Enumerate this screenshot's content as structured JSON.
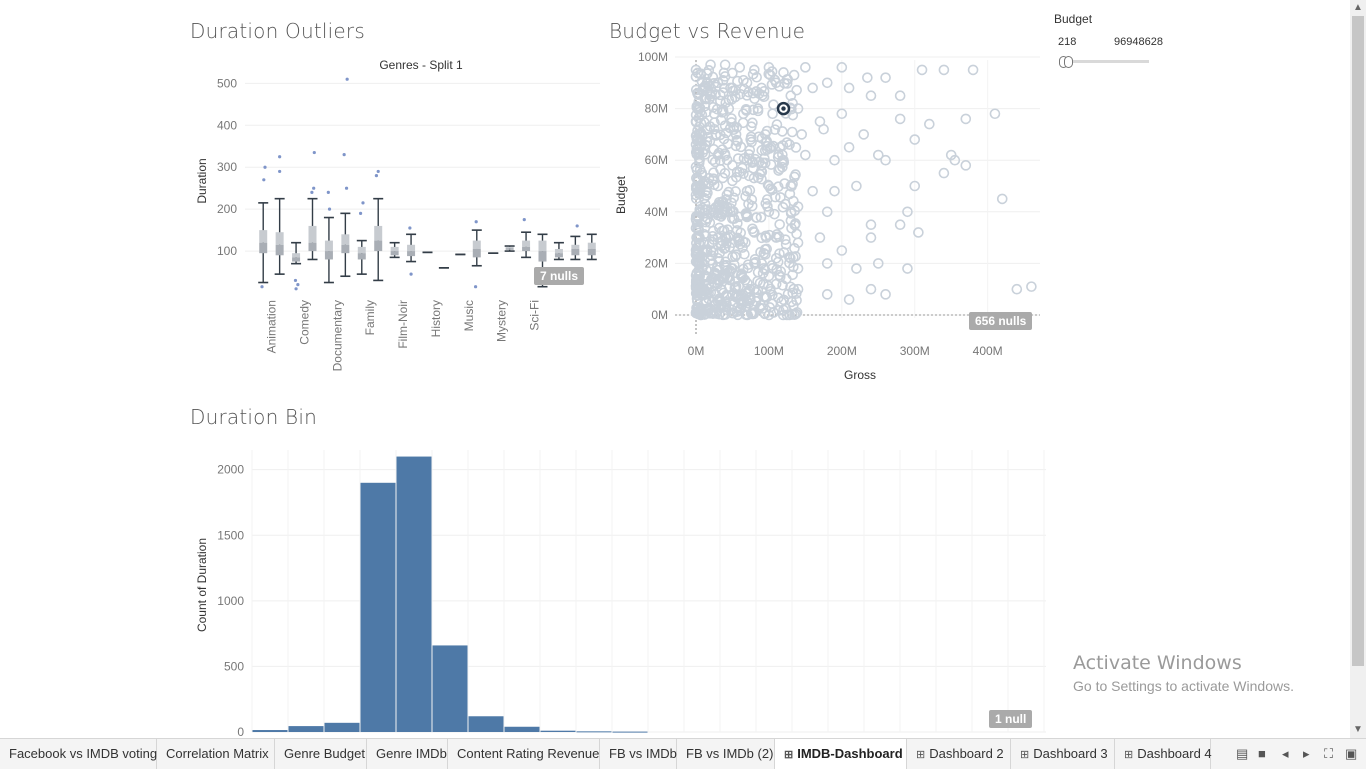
{
  "dashboard": {
    "panels": {
      "duration_outliers": {
        "title": "Duration Outliers",
        "nulls_badge": "7 nulls"
      },
      "budget_vs_revenue": {
        "title": "Budget vs Revenue",
        "nulls_badge": "656 nulls"
      },
      "duration_bin": {
        "title": "Duration Bin",
        "nulls_badge": "1 null"
      }
    },
    "filter": {
      "label": "Budget",
      "min": "218",
      "max": "96948628"
    }
  },
  "chart_data": [
    {
      "type": "box",
      "title": "Duration Outliers",
      "subtitle": "Genres - Split 1",
      "ylabel": "Duration",
      "ylim": [
        0,
        520
      ],
      "yticks": [
        100,
        200,
        300,
        400,
        500
      ],
      "category_labels": [
        "Animation",
        "Comedy",
        "Documentary",
        "Family",
        "Film-Noir",
        "History",
        "Music",
        "Mystery",
        "Sci-Fi"
      ],
      "boxes": [
        {
          "min": 25,
          "q1": 95,
          "median": 120,
          "q3": 150,
          "max": 215,
          "outliers": [
            270,
            300,
            15
          ]
        },
        {
          "min": 45,
          "q1": 90,
          "median": 115,
          "q3": 145,
          "max": 225,
          "outliers": [
            290,
            325
          ]
        },
        {
          "min": 70,
          "q1": 75,
          "median": 85,
          "q3": 95,
          "max": 120,
          "outliers": [
            10,
            20,
            30
          ]
        },
        {
          "min": 80,
          "q1": 100,
          "median": 120,
          "q3": 160,
          "max": 225,
          "outliers": [
            240,
            250,
            335
          ]
        },
        {
          "min": 25,
          "q1": 80,
          "median": 100,
          "q3": 125,
          "max": 180,
          "outliers": [
            240,
            200
          ]
        },
        {
          "min": 40,
          "q1": 95,
          "median": 115,
          "q3": 140,
          "max": 190,
          "outliers": [
            250,
            330,
            510
          ]
        },
        {
          "min": 45,
          "q1": 80,
          "median": 95,
          "q3": 110,
          "max": 125,
          "outliers": [
            190,
            215
          ]
        },
        {
          "min": 30,
          "q1": 100,
          "median": 125,
          "q3": 160,
          "max": 225,
          "outliers": [
            280,
            290
          ]
        },
        {
          "min": 85,
          "q1": 90,
          "median": 100,
          "q3": 110,
          "max": 120,
          "outliers": []
        },
        {
          "min": 75,
          "q1": 88,
          "median": 100,
          "q3": 115,
          "max": 140,
          "outliers": [
            45,
            155
          ]
        },
        {
          "min": 97,
          "q1": 97,
          "median": 97,
          "q3": 97,
          "max": 97,
          "outliers": []
        },
        {
          "min": 60,
          "q1": 60,
          "median": 60,
          "q3": 60,
          "max": 60,
          "outliers": []
        },
        {
          "min": 92,
          "q1": 92,
          "median": 92,
          "q3": 92,
          "max": 92,
          "outliers": []
        },
        {
          "min": 65,
          "q1": 85,
          "median": 105,
          "q3": 125,
          "max": 150,
          "outliers": [
            15,
            170
          ]
        },
        {
          "min": 95,
          "q1": 95,
          "median": 95,
          "q3": 95,
          "max": 95,
          "outliers": []
        },
        {
          "min": 100,
          "q1": 103,
          "median": 107,
          "q3": 110,
          "max": 112,
          "outliers": []
        },
        {
          "min": 85,
          "q1": 100,
          "median": 110,
          "q3": 125,
          "max": 145,
          "outliers": [
            175
          ]
        },
        {
          "min": 15,
          "q1": 75,
          "median": 100,
          "q3": 125,
          "max": 140,
          "outliers": []
        },
        {
          "min": 80,
          "q1": 85,
          "median": 95,
          "q3": 105,
          "max": 120,
          "outliers": []
        },
        {
          "min": 80,
          "q1": 90,
          "median": 105,
          "q3": 115,
          "max": 135,
          "outliers": [
            160
          ]
        },
        {
          "min": 80,
          "q1": 90,
          "median": 105,
          "q3": 120,
          "max": 140,
          "outliers": []
        }
      ]
    },
    {
      "type": "scatter",
      "title": "Budget vs Revenue",
      "xlabel": "Gross",
      "ylabel": "Budget",
      "xticks": [
        "0M",
        "100M",
        "200M",
        "300M",
        "400M"
      ],
      "yticks": [
        "0M",
        "20M",
        "40M",
        "60M",
        "80M",
        "100M"
      ],
      "xlim": [
        0,
        480
      ],
      "ylim": [
        0,
        100
      ],
      "units": "millions",
      "highlighted_point": {
        "x": 120,
        "y": 80
      },
      "points": [
        [
          0,
          95
        ],
        [
          20,
          97
        ],
        [
          40,
          97
        ],
        [
          60,
          96
        ],
        [
          80,
          95
        ],
        [
          100,
          96
        ],
        [
          120,
          94
        ],
        [
          150,
          96
        ],
        [
          200,
          96
        ],
        [
          235,
          92
        ],
        [
          260,
          92
        ],
        [
          310,
          95
        ],
        [
          340,
          95
        ],
        [
          380,
          95
        ],
        [
          10,
          88
        ],
        [
          30,
          90
        ],
        [
          50,
          88
        ],
        [
          70,
          90
        ],
        [
          90,
          88
        ],
        [
          110,
          90
        ],
        [
          130,
          85
        ],
        [
          160,
          88
        ],
        [
          180,
          90
        ],
        [
          210,
          88
        ],
        [
          240,
          85
        ],
        [
          280,
          85
        ],
        [
          5,
          80
        ],
        [
          25,
          78
        ],
        [
          45,
          80
        ],
        [
          65,
          78
        ],
        [
          85,
          80
        ],
        [
          105,
          78
        ],
        [
          140,
          80
        ],
        [
          170,
          75
        ],
        [
          200,
          78
        ],
        [
          230,
          70
        ],
        [
          280,
          76
        ],
        [
          320,
          74
        ],
        [
          370,
          76
        ],
        [
          410,
          78
        ],
        [
          5,
          70
        ],
        [
          25,
          72
        ],
        [
          55,
          70
        ],
        [
          75,
          68
        ],
        [
          95,
          70
        ],
        [
          115,
          65
        ],
        [
          145,
          70
        ],
        [
          175,
          72
        ],
        [
          210,
          65
        ],
        [
          250,
          62
        ],
        [
          300,
          68
        ],
        [
          350,
          62
        ],
        [
          5,
          60
        ],
        [
          30,
          62
        ],
        [
          50,
          58
        ],
        [
          70,
          60
        ],
        [
          90,
          58
        ],
        [
          120,
          60
        ],
        [
          150,
          62
        ],
        [
          190,
          60
        ],
        [
          260,
          60
        ],
        [
          355,
          60
        ],
        [
          370,
          58
        ],
        [
          5,
          50
        ],
        [
          30,
          50
        ],
        [
          50,
          52
        ],
        [
          70,
          48
        ],
        [
          100,
          50
        ],
        [
          130,
          50
        ],
        [
          160,
          48
        ],
        [
          190,
          48
        ],
        [
          220,
          50
        ],
        [
          300,
          50
        ],
        [
          340,
          55
        ],
        [
          5,
          40
        ],
        [
          30,
          42
        ],
        [
          50,
          40
        ],
        [
          70,
          38
        ],
        [
          100,
          40
        ],
        [
          140,
          42
        ],
        [
          180,
          40
        ],
        [
          240,
          35
        ],
        [
          290,
          40
        ],
        [
          305,
          32
        ],
        [
          420,
          45
        ],
        [
          5,
          30
        ],
        [
          30,
          30
        ],
        [
          50,
          28
        ],
        [
          80,
          32
        ],
        [
          110,
          30
        ],
        [
          140,
          28
        ],
        [
          170,
          30
        ],
        [
          200,
          25
        ],
        [
          240,
          30
        ],
        [
          280,
          35
        ],
        [
          5,
          20
        ],
        [
          30,
          22
        ],
        [
          50,
          18
        ],
        [
          80,
          20
        ],
        [
          110,
          22
        ],
        [
          140,
          18
        ],
        [
          180,
          20
        ],
        [
          220,
          18
        ],
        [
          250,
          20
        ],
        [
          290,
          18
        ],
        [
          5,
          10
        ],
        [
          30,
          12
        ],
        [
          50,
          8
        ],
        [
          80,
          10
        ],
        [
          110,
          12
        ],
        [
          140,
          10
        ],
        [
          180,
          8
        ],
        [
          210,
          6
        ],
        [
          240,
          10
        ],
        [
          260,
          8
        ],
        [
          440,
          10
        ],
        [
          460,
          11
        ],
        [
          5,
          2
        ],
        [
          20,
          1
        ],
        [
          40,
          3
        ],
        [
          60,
          2
        ],
        [
          80,
          1
        ],
        [
          100,
          0
        ],
        [
          120,
          2
        ]
      ]
    },
    {
      "type": "bar",
      "title": "Duration Bin",
      "xlabel": "",
      "ylabel": "Count of Duration",
      "yticks": [
        0,
        500,
        1000,
        1500,
        2000
      ],
      "ylim": [
        0,
        2150
      ],
      "values": [
        15,
        45,
        70,
        1900,
        2100,
        660,
        120,
        40,
        10,
        5,
        3
      ]
    }
  ],
  "tabs": [
    {
      "label": "Facebook vs IMDB voting",
      "icon": ""
    },
    {
      "label": "Correlation Matrix",
      "icon": ""
    },
    {
      "label": "Genre Budget",
      "icon": ""
    },
    {
      "label": "Genre IMDb",
      "icon": ""
    },
    {
      "label": "Content Rating Revenue",
      "icon": ""
    },
    {
      "label": "FB vs IMDb",
      "icon": ""
    },
    {
      "label": "FB vs IMDb (2)",
      "icon": ""
    },
    {
      "label": "IMDB-Dashboard",
      "icon": "⊞",
      "active": true
    },
    {
      "label": "Dashboard 2",
      "icon": "⊞"
    },
    {
      "label": "Dashboard 3",
      "icon": "⊞"
    },
    {
      "label": "Dashboard 4",
      "icon": "⊞"
    }
  ],
  "tab_controls": [
    "grid-view-icon",
    "filmstrip-icon",
    "prev-icon",
    "next-icon",
    "fullscreen-icon",
    "present-icon"
  ],
  "watermark": {
    "line1": "Activate Windows",
    "line2": "Go to Settings to activate Windows."
  },
  "colors": {
    "bar": "#4e79a7",
    "box": "#333d47",
    "scatter": "#c9d1da",
    "highlight": "#27384b"
  }
}
